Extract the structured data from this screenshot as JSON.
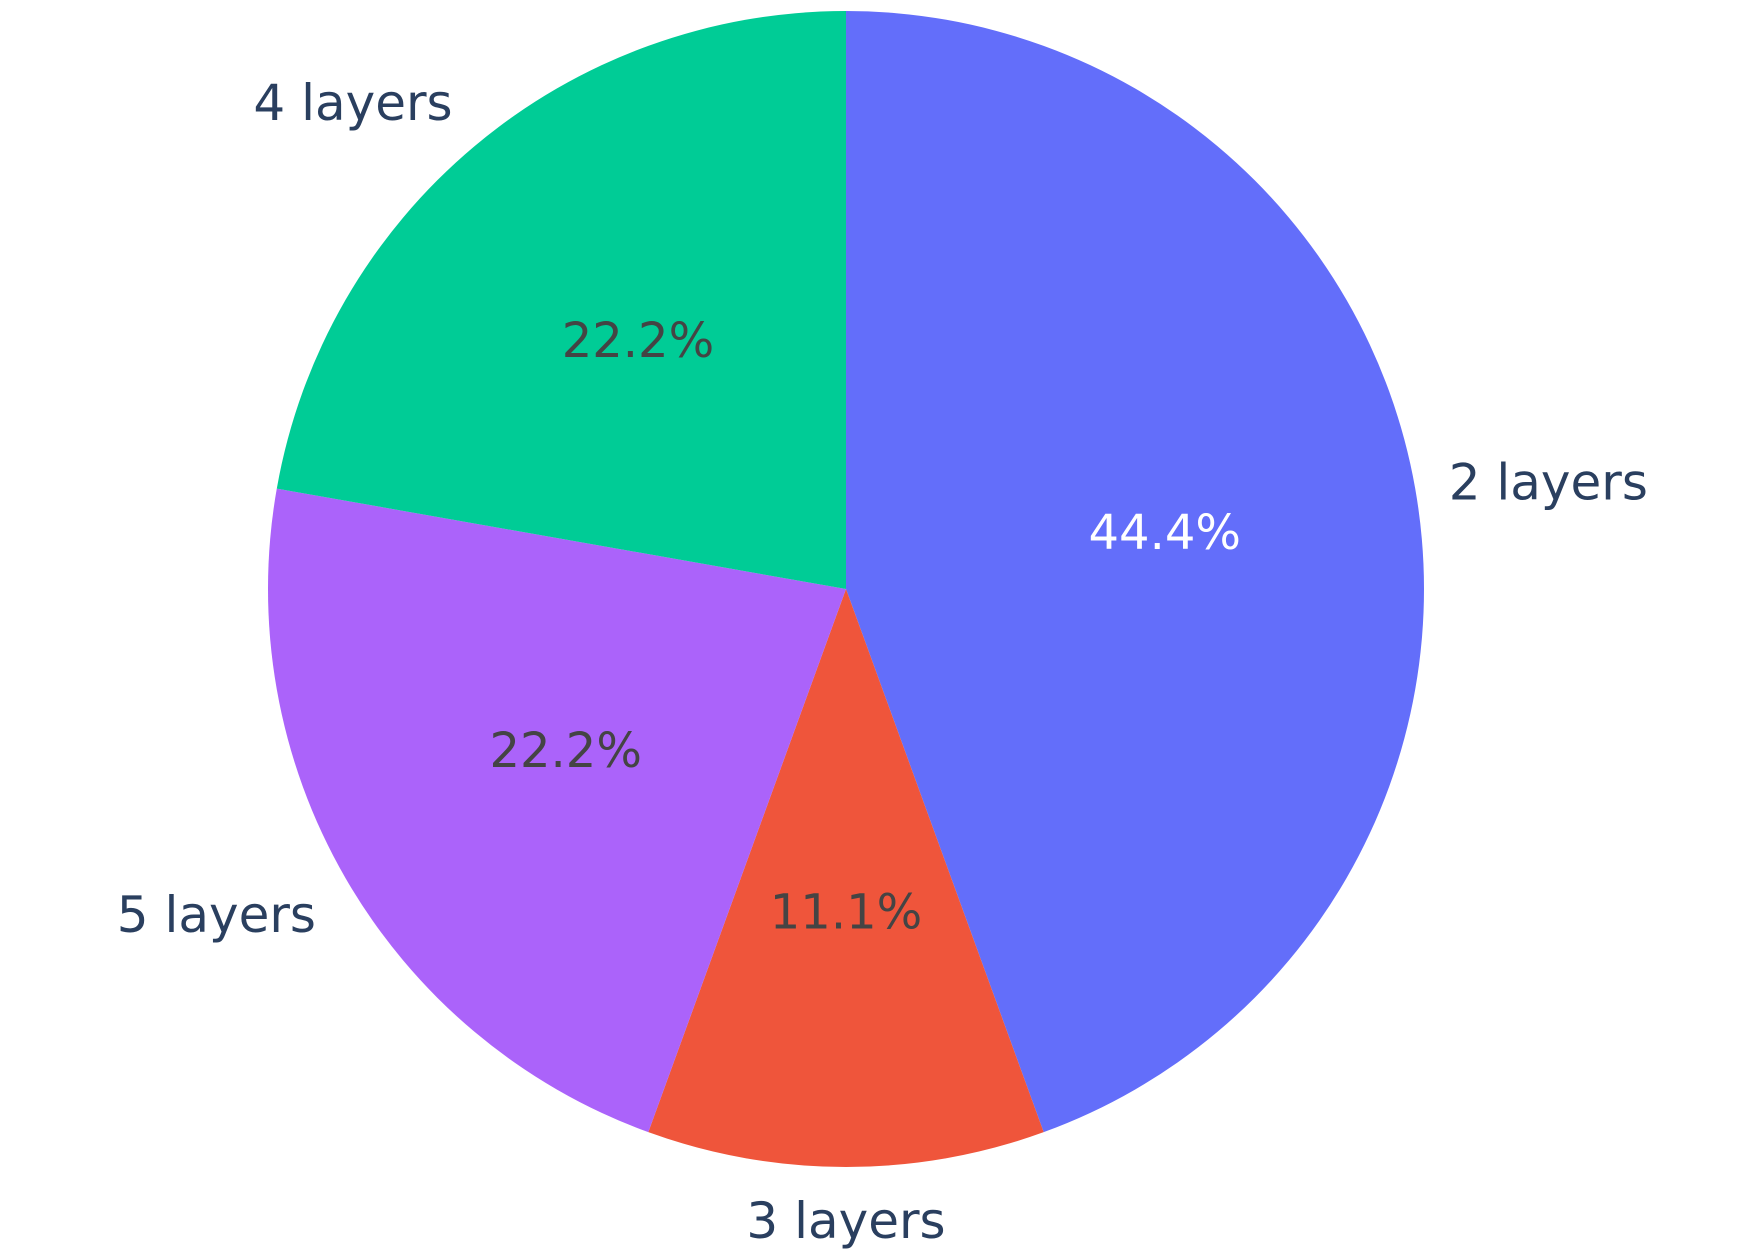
{
  "chart_data": {
    "type": "pie",
    "title": "",
    "direction": "clockwise",
    "start": "top",
    "slices": [
      {
        "label": "2 layers",
        "value": 44.4,
        "text": "44.4%",
        "color": "#636efa",
        "text_color": "#ffffff"
      },
      {
        "label": "3 layers",
        "value": 11.1,
        "text": "11.1%",
        "color": "#ef553b",
        "text_color": "#444444"
      },
      {
        "label": "5 layers",
        "value": 22.2,
        "text": "22.2%",
        "color": "#ab63fa",
        "text_color": "#444444"
      },
      {
        "label": "4 layers",
        "value": 22.2,
        "text": "22.2%",
        "color": "#00cc96",
        "text_color": "#444444"
      }
    ]
  }
}
